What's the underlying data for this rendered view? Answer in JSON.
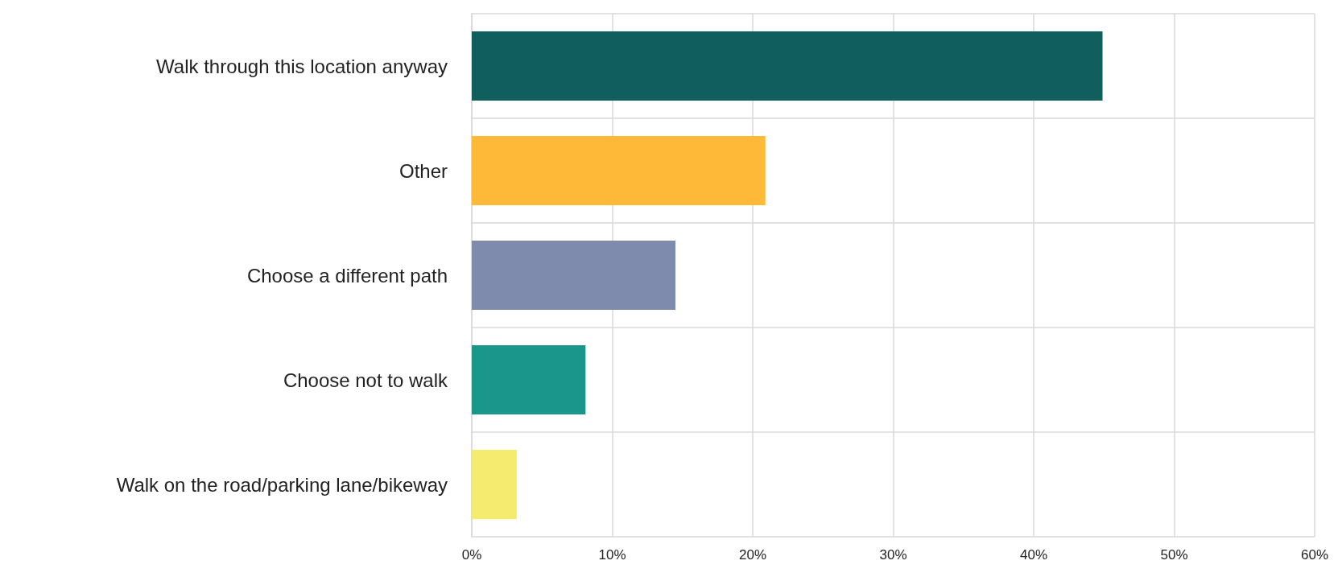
{
  "chart_data": {
    "type": "bar",
    "orientation": "horizontal",
    "categories": [
      "Walk through this location anyway",
      "Other",
      "Choose a different path",
      "Choose not to walk",
      "Walk on the road/parking lane/bikeway"
    ],
    "values": [
      44.9,
      20.9,
      14.5,
      8.1,
      3.2
    ],
    "colors": [
      "#115e5f",
      "#ffb939",
      "#7e8bad",
      "#1a968a",
      "#f5ec6f"
    ],
    "xlim": [
      0,
      60
    ],
    "xticks": [
      {
        "value": 0,
        "label": "0%"
      },
      {
        "value": 10,
        "label": "10%"
      },
      {
        "value": 20,
        "label": "20%"
      },
      {
        "value": 30,
        "label": "30%"
      },
      {
        "value": 40,
        "label": "40%"
      },
      {
        "value": 50,
        "label": "50%"
      },
      {
        "value": 60,
        "label": "60%"
      }
    ],
    "grid": true
  }
}
